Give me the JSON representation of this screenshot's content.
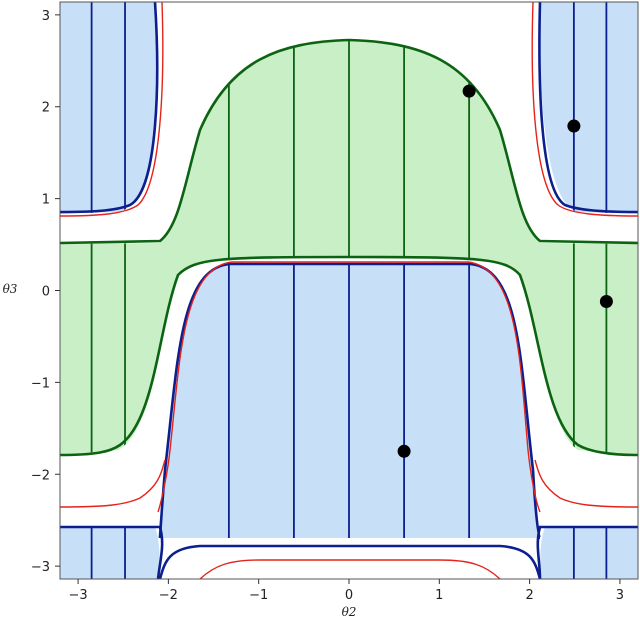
{
  "chart_data": {
    "type": "contour",
    "xlabel": "θ2",
    "ylabel": "θ3",
    "xlim": [
      -3.2,
      3.2
    ],
    "ylim": [
      -3.14,
      3.14
    ],
    "x_ticks": [
      -3,
      -2,
      -1,
      0,
      1,
      2,
      3
    ],
    "y_ticks": [
      -3,
      -2,
      -1,
      0,
      1,
      2,
      3
    ],
    "x_tick_labels": [
      "−3",
      "−2",
      "−1",
      "0",
      "1",
      "2",
      "3"
    ],
    "y_tick_labels": [
      "−3",
      "−2",
      "−1",
      "0",
      "1",
      "2",
      "3"
    ],
    "colors": {
      "blue_fill": "#c8dff8",
      "blue_line": "#0b1f8f",
      "green_fill": "#c9efc6",
      "green_line": "#0c6412",
      "red_line": "#e5231b",
      "point": "#000000"
    },
    "regions": [
      {
        "kind": "blue",
        "id": "top-left-corner"
      },
      {
        "kind": "blue",
        "id": "top-right-corner"
      },
      {
        "kind": "green",
        "id": "upper-center"
      },
      {
        "kind": "green",
        "id": "middle-band"
      },
      {
        "kind": "blue",
        "id": "lower-center"
      },
      {
        "kind": "blue",
        "id": "bottom-band"
      }
    ],
    "points": [
      {
        "x": 1.33,
        "y": 2.17
      },
      {
        "x": 2.49,
        "y": 1.79
      },
      {
        "x": 2.85,
        "y": -0.12
      },
      {
        "x": 0.61,
        "y": -1.75
      }
    ],
    "blue_vertical_lines_x": [
      -2.85,
      -2.48,
      -1.33,
      -0.61,
      0,
      0.61,
      1.33,
      2.49,
      2.85
    ],
    "green_vertical_lines_x": [
      -2.85,
      -2.48,
      -1.33,
      -0.61,
      0,
      0.61,
      1.33,
      2.49,
      2.85
    ]
  }
}
